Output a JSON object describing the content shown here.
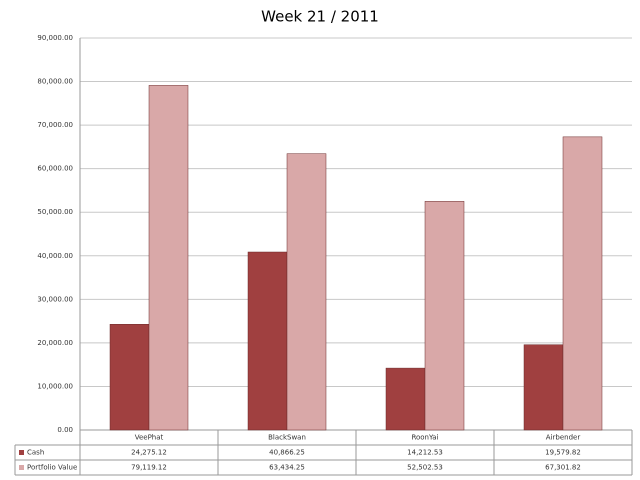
{
  "chart_data": {
    "type": "bar",
    "title": "Week 21 / 2011",
    "categories": [
      "VeePhat",
      "BlackSwan",
      "RoonYai",
      "Airbender"
    ],
    "series": [
      {
        "name": "Cash",
        "color": "#a04040",
        "values": [
          24275.12,
          40866.25,
          14212.53,
          19579.82
        ],
        "value_labels": [
          "24,275.12",
          "40,866.25",
          "14,212.53",
          "19,579.82"
        ]
      },
      {
        "name": "Portfolio Value",
        "color": "#d9a8a8",
        "values": [
          79119.12,
          63434.25,
          52502.53,
          67301.82
        ],
        "value_labels": [
          "79,119.12",
          "63,434.25",
          "52,502.53",
          "67,301.82"
        ]
      }
    ],
    "ylim": [
      0,
      90000
    ],
    "yticks": [
      {
        "value": 0,
        "label": "0.00"
      },
      {
        "value": 10000,
        "label": "10,000.00"
      },
      {
        "value": 20000,
        "label": "20,000.00"
      },
      {
        "value": 30000,
        "label": "30,000.00"
      },
      {
        "value": 40000,
        "label": "40,000.00"
      },
      {
        "value": 50000,
        "label": "50,000.00"
      },
      {
        "value": 60000,
        "label": "60,000.00"
      },
      {
        "value": 70000,
        "label": "70,000.00"
      },
      {
        "value": 80000,
        "label": "80,000.00"
      },
      {
        "value": 90000,
        "label": "90,000.00"
      }
    ],
    "grid": true
  }
}
